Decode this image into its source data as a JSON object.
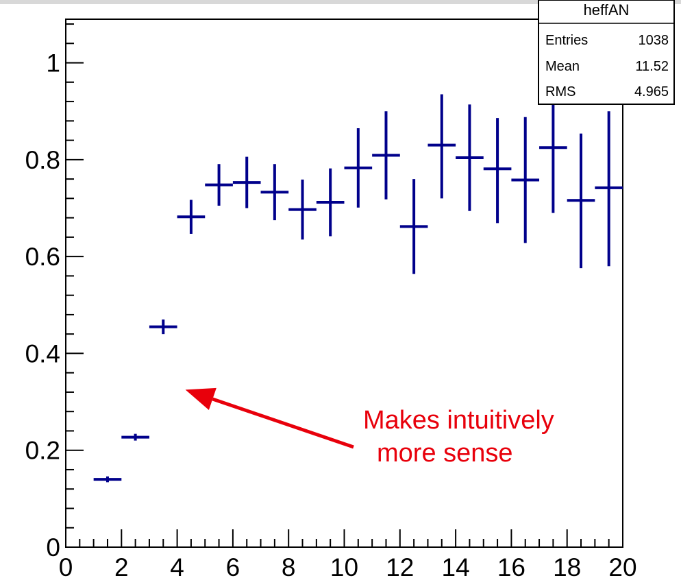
{
  "chart_data": {
    "type": "scatter",
    "title": "",
    "xlabel": "",
    "ylabel": "",
    "xlim": [
      0,
      20
    ],
    "ylim": [
      0,
      1.09
    ],
    "x_ticks": [
      0,
      2,
      4,
      6,
      8,
      10,
      12,
      14,
      16,
      18,
      20
    ],
    "x_tick_labels": [
      "0",
      "2",
      "4",
      "6",
      "8",
      "10",
      "12",
      "14",
      "16",
      "18",
      "20"
    ],
    "y_ticks": [
      0,
      0.2,
      0.4,
      0.6,
      0.8,
      1
    ],
    "y_tick_labels": [
      "0",
      "0.2",
      "0.4",
      "0.6",
      "0.8",
      "1"
    ],
    "grid": false,
    "marker_color": "#00008b",
    "series": [
      {
        "x": [
          1.5,
          2.5,
          3.5,
          4.5,
          5.5,
          6.5,
          7.5,
          8.5,
          9.5,
          10.5,
          11.5,
          12.5,
          13.5,
          14.5,
          15.5,
          16.5,
          17.5,
          18.5,
          19.5
        ],
        "x_err": [
          0.5,
          0.5,
          0.5,
          0.5,
          0.5,
          0.5,
          0.5,
          0.5,
          0.5,
          0.5,
          0.5,
          0.5,
          0.5,
          0.5,
          0.5,
          0.5,
          0.5,
          0.5,
          0.5
        ],
        "y": [
          0.14,
          0.227,
          0.455,
          0.682,
          0.748,
          0.753,
          0.733,
          0.697,
          0.712,
          0.783,
          0.809,
          0.662,
          0.83,
          0.804,
          0.781,
          0.758,
          0.825,
          0.716,
          0.742
        ],
        "y_err_low": [
          0.006,
          0.007,
          0.015,
          0.035,
          0.043,
          0.053,
          0.058,
          0.062,
          0.07,
          0.082,
          0.091,
          0.098,
          0.11,
          0.11,
          0.112,
          0.13,
          0.135,
          0.14,
          0.162
        ],
        "y_err_high": [
          0.006,
          0.007,
          0.015,
          0.035,
          0.043,
          0.053,
          0.058,
          0.062,
          0.07,
          0.082,
          0.091,
          0.098,
          0.105,
          0.11,
          0.105,
          0.13,
          0.13,
          0.138,
          0.158
        ]
      }
    ],
    "stats_box": {
      "title": "heffAN",
      "rows": [
        {
          "label": "Entries",
          "value": "1038"
        },
        {
          "label": "Mean",
          "value": "11.52"
        },
        {
          "label": "RMS",
          "value": "4.965"
        }
      ],
      "position": "top-right"
    },
    "annotation": {
      "lines": [
        "Makes intuitively",
        "more sense"
      ],
      "color": "#e8000b",
      "points_to": {
        "x": 4.0,
        "y": 0.325
      }
    }
  }
}
